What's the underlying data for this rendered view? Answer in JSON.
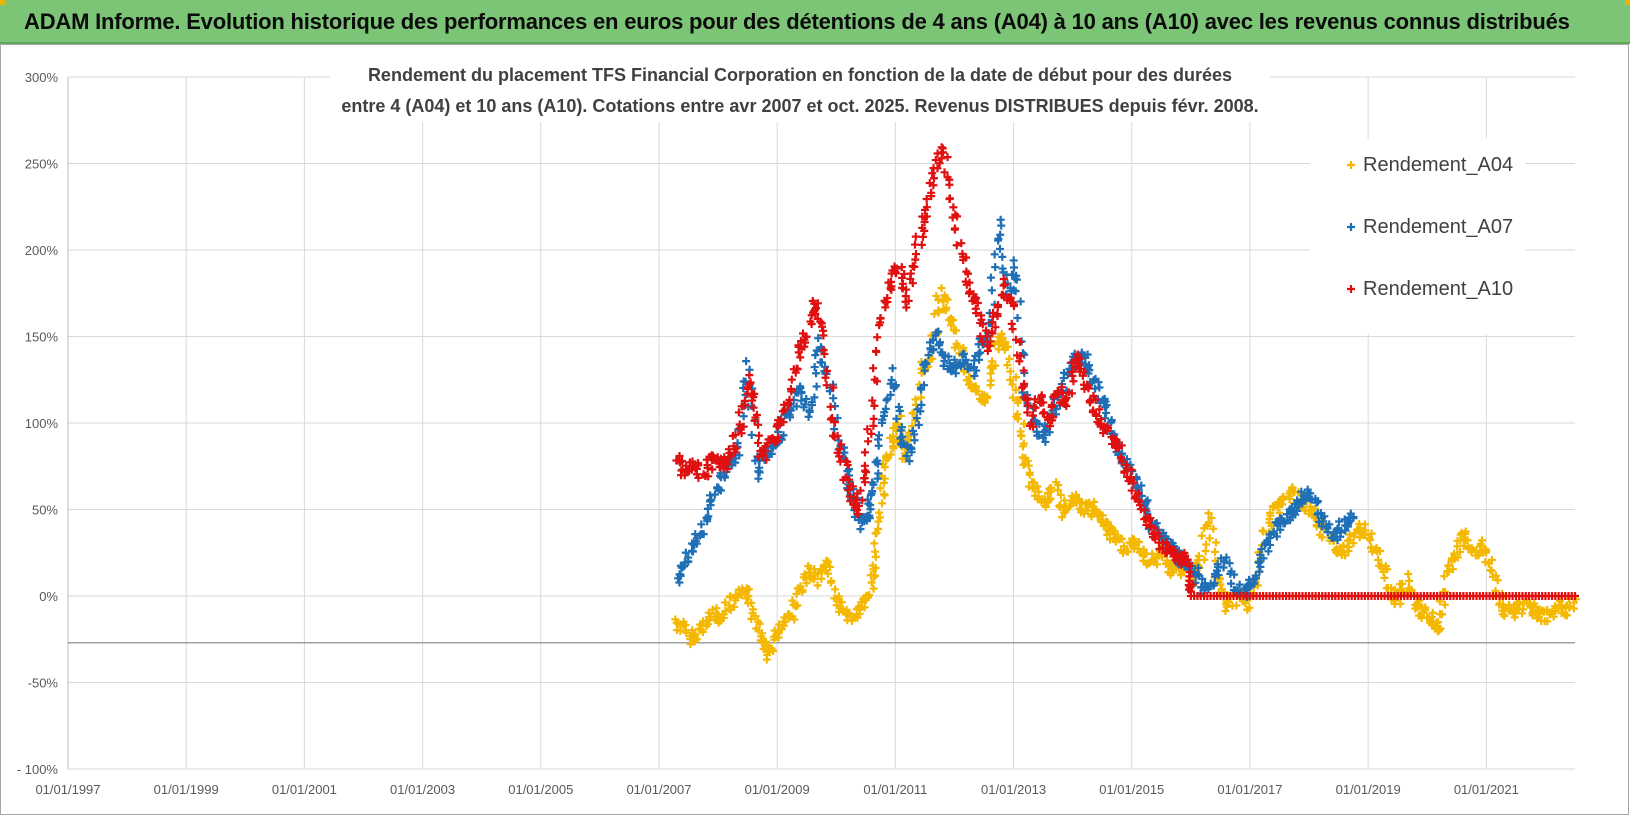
{
  "header": {
    "title": "ADAM Informe. Evolution historique des performances en euros pour des détentions de 4 ans (A04) à 10 ans (A10) avec les revenus connus distribués"
  },
  "colors": {
    "banner": "#7cc576",
    "A04": "#f5b800",
    "A07": "#1f6fb6",
    "A10": "#e01010",
    "grid": "#d9d9d9"
  },
  "chart_data": {
    "type": "scatter",
    "title_lines": [
      "Rendement du placement TFS Financial Corporation en fonction de la date de début pour des durées",
      "entre 4 (A04) et 10 ans (A10). Cotations entre avr 2007 et oct. 2025. Revenus DISTRIBUES depuis févr. 2008."
    ],
    "y_ticks": [
      "300%",
      "250%",
      "200%",
      "150%",
      "100%",
      "50%",
      "0%",
      "-50%",
      "- 100%"
    ],
    "y_tick_values": [
      300,
      250,
      200,
      150,
      100,
      50,
      0,
      -50,
      -100
    ],
    "x_ticks": [
      "01/01/1997",
      "01/01/1999",
      "01/01/2001",
      "01/01/2003",
      "01/01/2005",
      "01/01/2007",
      "01/01/2009",
      "01/01/2011",
      "01/01/2013",
      "01/01/2015",
      "01/01/2017",
      "01/01/2019",
      "01/01/2021"
    ],
    "x_tick_values": [
      1997,
      1999,
      2001,
      2003,
      2005,
      2007,
      2009,
      2011,
      2013,
      2015,
      2017,
      2019,
      2021
    ],
    "xlim": [
      1997,
      2022.5
    ],
    "ylim": [
      -100,
      300
    ],
    "reference_line_y": -27,
    "legend_position": "top-right",
    "series": [
      {
        "name": "Rendement_A04",
        "color": "#f5b800",
        "points": [
          [
            2007.3,
            -15
          ],
          [
            2007.45,
            -20
          ],
          [
            2007.6,
            -25
          ],
          [
            2007.75,
            -18
          ],
          [
            2007.9,
            -10
          ],
          [
            2008.05,
            -12
          ],
          [
            2008.2,
            -5
          ],
          [
            2008.35,
            -2
          ],
          [
            2008.5,
            5
          ],
          [
            2008.6,
            -10
          ],
          [
            2008.75,
            -25
          ],
          [
            2008.85,
            -35
          ],
          [
            2008.95,
            -25
          ],
          [
            2009.1,
            -18
          ],
          [
            2009.25,
            -10
          ],
          [
            2009.4,
            5
          ],
          [
            2009.55,
            15
          ],
          [
            2009.7,
            10
          ],
          [
            2009.85,
            18
          ],
          [
            2010.0,
            -2
          ],
          [
            2010.15,
            -10
          ],
          [
            2010.3,
            -12
          ],
          [
            2010.45,
            -5
          ],
          [
            2010.55,
            0
          ],
          [
            2010.65,
            20
          ],
          [
            2010.75,
            50
          ],
          [
            2010.85,
            75
          ],
          [
            2010.95,
            90
          ],
          [
            2011.05,
            100
          ],
          [
            2011.15,
            80
          ],
          [
            2011.3,
            95
          ],
          [
            2011.45,
            130
          ],
          [
            2011.6,
            140
          ],
          [
            2011.75,
            175
          ],
          [
            2011.9,
            165
          ],
          [
            2012.05,
            145
          ],
          [
            2012.2,
            130
          ],
          [
            2012.35,
            120
          ],
          [
            2012.5,
            110
          ],
          [
            2012.65,
            135
          ],
          [
            2012.8,
            150
          ],
          [
            2012.9,
            140
          ],
          [
            2013.05,
            115
          ],
          [
            2013.15,
            90
          ],
          [
            2013.25,
            70
          ],
          [
            2013.4,
            60
          ],
          [
            2013.55,
            55
          ],
          [
            2013.7,
            62
          ],
          [
            2013.85,
            48
          ],
          [
            2014.0,
            58
          ],
          [
            2014.15,
            50
          ],
          [
            2014.3,
            52
          ],
          [
            2014.45,
            45
          ],
          [
            2014.6,
            38
          ],
          [
            2014.75,
            32
          ],
          [
            2014.9,
            28
          ],
          [
            2015.05,
            30
          ],
          [
            2015.2,
            22
          ],
          [
            2015.35,
            20
          ],
          [
            2015.5,
            25
          ],
          [
            2015.65,
            15
          ],
          [
            2015.8,
            20
          ],
          [
            2016.0,
            5
          ],
          [
            2016.15,
            18
          ],
          [
            2016.3,
            48
          ],
          [
            2016.45,
            10
          ],
          [
            2016.6,
            -5
          ],
          [
            2016.8,
            -2
          ],
          [
            2017.0,
            -5
          ],
          [
            2017.1,
            10
          ],
          [
            2017.25,
            35
          ],
          [
            2017.4,
            50
          ],
          [
            2017.55,
            55
          ],
          [
            2017.7,
            60
          ],
          [
            2017.85,
            55
          ],
          [
            2018.0,
            50
          ],
          [
            2018.15,
            40
          ],
          [
            2018.3,
            35
          ],
          [
            2018.45,
            28
          ],
          [
            2018.6,
            25
          ],
          [
            2018.75,
            35
          ],
          [
            2018.9,
            40
          ],
          [
            2019.05,
            30
          ],
          [
            2019.2,
            20
          ],
          [
            2019.35,
            5
          ],
          [
            2019.5,
            -2
          ],
          [
            2019.65,
            10
          ],
          [
            2019.8,
            -5
          ],
          [
            2019.95,
            -10
          ],
          [
            2020.1,
            -15
          ],
          [
            2020.2,
            -18
          ],
          [
            2020.35,
            15
          ],
          [
            2020.5,
            25
          ],
          [
            2020.65,
            35
          ],
          [
            2020.8,
            25
          ],
          [
            2020.95,
            30
          ],
          [
            2021.1,
            15
          ],
          [
            2021.25,
            -5
          ],
          [
            2021.4,
            -10
          ],
          [
            2021.55,
            -8
          ],
          [
            2021.7,
            -5
          ],
          [
            2021.85,
            -10
          ],
          [
            2022.0,
            -12
          ],
          [
            2022.2,
            -5
          ],
          [
            2022.35,
            -10
          ],
          [
            2022.5,
            0
          ]
        ]
      },
      {
        "name": "Rendement_A07",
        "color": "#1f6fb6",
        "points": [
          [
            2007.3,
            10
          ],
          [
            2007.45,
            20
          ],
          [
            2007.6,
            30
          ],
          [
            2007.75,
            40
          ],
          [
            2007.9,
            55
          ],
          [
            2008.05,
            65
          ],
          [
            2008.2,
            75
          ],
          [
            2008.35,
            85
          ],
          [
            2008.5,
            135
          ],
          [
            2008.65,
            70
          ],
          [
            2008.8,
            80
          ],
          [
            2008.95,
            85
          ],
          [
            2009.1,
            100
          ],
          [
            2009.25,
            110
          ],
          [
            2009.4,
            120
          ],
          [
            2009.55,
            105
          ],
          [
            2009.7,
            145
          ],
          [
            2009.85,
            130
          ],
          [
            2010.0,
            95
          ],
          [
            2010.15,
            75
          ],
          [
            2010.3,
            55
          ],
          [
            2010.45,
            40
          ],
          [
            2010.55,
            50
          ],
          [
            2010.65,
            65
          ],
          [
            2010.8,
            100
          ],
          [
            2010.95,
            130
          ],
          [
            2011.1,
            90
          ],
          [
            2011.25,
            80
          ],
          [
            2011.4,
            110
          ],
          [
            2011.55,
            140
          ],
          [
            2011.7,
            150
          ],
          [
            2011.85,
            135
          ],
          [
            2012.0,
            130
          ],
          [
            2012.15,
            140
          ],
          [
            2012.3,
            130
          ],
          [
            2012.45,
            145
          ],
          [
            2012.6,
            155
          ],
          [
            2012.75,
            215
          ],
          [
            2012.9,
            175
          ],
          [
            2013.05,
            190
          ],
          [
            2013.2,
            120
          ],
          [
            2013.35,
            100
          ],
          [
            2013.5,
            90
          ],
          [
            2013.65,
            105
          ],
          [
            2013.8,
            115
          ],
          [
            2013.95,
            130
          ],
          [
            2014.1,
            140
          ],
          [
            2014.25,
            135
          ],
          [
            2014.4,
            120
          ],
          [
            2014.55,
            110
          ],
          [
            2014.7,
            90
          ],
          [
            2014.85,
            80
          ],
          [
            2015.0,
            70
          ],
          [
            2015.15,
            60
          ],
          [
            2015.3,
            45
          ],
          [
            2015.45,
            35
          ],
          [
            2015.6,
            30
          ],
          [
            2015.75,
            25
          ],
          [
            2015.9,
            18
          ],
          [
            2016.05,
            15
          ],
          [
            2016.2,
            5
          ],
          [
            2016.4,
            10
          ],
          [
            2016.55,
            20
          ],
          [
            2016.75,
            5
          ],
          [
            2016.95,
            2
          ],
          [
            2017.1,
            10
          ],
          [
            2017.25,
            25
          ],
          [
            2017.4,
            35
          ],
          [
            2017.55,
            45
          ],
          [
            2017.7,
            48
          ],
          [
            2017.85,
            55
          ],
          [
            2018.0,
            60
          ],
          [
            2018.15,
            50
          ],
          [
            2018.3,
            40
          ],
          [
            2018.45,
            35
          ],
          [
            2018.6,
            42
          ],
          [
            2018.75,
            45
          ]
        ]
      },
      {
        "name": "Rendement_A10",
        "color": "#e01010",
        "points": [
          [
            2007.3,
            80
          ],
          [
            2007.45,
            70
          ],
          [
            2007.6,
            75
          ],
          [
            2007.75,
            70
          ],
          [
            2007.9,
            80
          ],
          [
            2008.05,
            75
          ],
          [
            2008.2,
            80
          ],
          [
            2008.35,
            95
          ],
          [
            2008.5,
            125
          ],
          [
            2008.6,
            110
          ],
          [
            2008.75,
            80
          ],
          [
            2008.9,
            90
          ],
          [
            2009.05,
            100
          ],
          [
            2009.2,
            115
          ],
          [
            2009.35,
            140
          ],
          [
            2009.5,
            150
          ],
          [
            2009.65,
            170
          ],
          [
            2009.8,
            150
          ],
          [
            2009.95,
            100
          ],
          [
            2010.1,
            80
          ],
          [
            2010.25,
            60
          ],
          [
            2010.35,
            50
          ],
          [
            2010.5,
            70
          ],
          [
            2010.6,
            110
          ],
          [
            2010.75,
            160
          ],
          [
            2010.9,
            180
          ],
          [
            2011.05,
            190
          ],
          [
            2011.2,
            170
          ],
          [
            2011.35,
            200
          ],
          [
            2011.5,
            220
          ],
          [
            2011.65,
            240
          ],
          [
            2011.8,
            260
          ],
          [
            2011.95,
            230
          ],
          [
            2012.1,
            200
          ],
          [
            2012.25,
            175
          ],
          [
            2012.4,
            165
          ],
          [
            2012.55,
            145
          ],
          [
            2012.7,
            160
          ],
          [
            2012.85,
            180
          ],
          [
            2013.0,
            165
          ],
          [
            2013.15,
            125
          ],
          [
            2013.3,
            100
          ],
          [
            2013.45,
            115
          ],
          [
            2013.6,
            100
          ],
          [
            2013.75,
            120
          ],
          [
            2013.9,
            110
          ],
          [
            2014.05,
            140
          ],
          [
            2014.2,
            125
          ],
          [
            2014.35,
            110
          ],
          [
            2014.5,
            100
          ],
          [
            2014.65,
            90
          ],
          [
            2014.8,
            85
          ],
          [
            2014.95,
            70
          ],
          [
            2015.1,
            60
          ],
          [
            2015.25,
            45
          ],
          [
            2015.4,
            35
          ],
          [
            2015.55,
            28
          ],
          [
            2015.7,
            25
          ],
          [
            2015.85,
            22
          ],
          [
            2015.95,
            15
          ],
          [
            2016.0,
            0
          ],
          [
            2016.5,
            0
          ],
          [
            2017.0,
            0
          ],
          [
            2017.5,
            0
          ],
          [
            2018.0,
            0
          ],
          [
            2018.5,
            0
          ],
          [
            2019.0,
            0
          ],
          [
            2019.5,
            0
          ],
          [
            2020.0,
            0
          ],
          [
            2020.5,
            0
          ],
          [
            2021.0,
            0
          ],
          [
            2021.5,
            0
          ],
          [
            2022.0,
            0
          ],
          [
            2022.5,
            0
          ]
        ]
      }
    ]
  }
}
